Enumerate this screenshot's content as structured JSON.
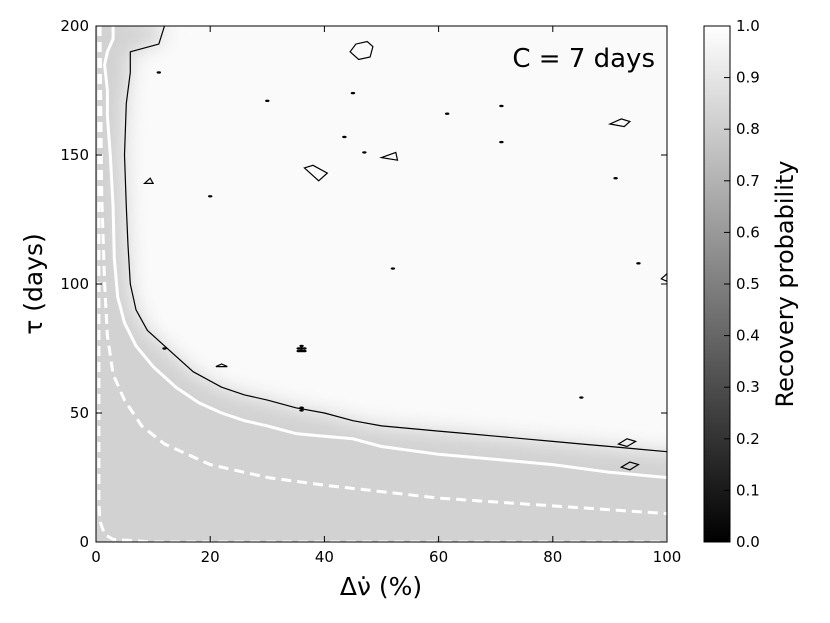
{
  "chart_data": {
    "type": "heatmap",
    "annotation": "C = 7 days",
    "xlabel": "Δν̇ (%)",
    "ylabel": "τ (days)",
    "colorbar_label": "Recovery probability",
    "x_range": [
      0,
      100
    ],
    "y_range": [
      0,
      200
    ],
    "x_ticks": [
      0,
      20,
      40,
      60,
      80,
      100
    ],
    "y_ticks": [
      0,
      50,
      100,
      150,
      200
    ],
    "colorbar_range": [
      0.0,
      1.0
    ],
    "colorbar_ticks": [
      "0.0",
      "0.1",
      "0.2",
      "0.3",
      "0.4",
      "0.5",
      "0.6",
      "0.7",
      "0.8",
      "0.9",
      "1.0"
    ],
    "colormap": "gray",
    "colors": {
      "low": "#000000",
      "high": "#ffffff"
    },
    "contours": [
      {
        "style": "dashed-white",
        "points": [
          [
            0.5,
            200
          ],
          [
            0.5,
            150
          ],
          [
            0.5,
            100
          ],
          [
            0.5,
            50
          ],
          [
            0.5,
            15
          ],
          [
            0.7,
            8
          ],
          [
            1.5,
            3
          ],
          [
            3,
            1
          ],
          [
            10,
            0
          ],
          [
            100,
            0
          ]
        ]
      },
      {
        "style": "dashed-white",
        "points": [
          [
            0.7,
            200
          ],
          [
            0.8,
            175
          ],
          [
            1,
            135
          ],
          [
            1.5,
            100
          ],
          [
            2,
            80
          ],
          [
            3,
            65
          ],
          [
            5,
            55
          ],
          [
            8,
            45
          ],
          [
            12,
            38
          ],
          [
            20,
            30
          ],
          [
            30,
            25
          ],
          [
            40,
            22
          ],
          [
            60,
            17
          ],
          [
            80,
            14
          ],
          [
            100,
            11
          ]
        ]
      },
      {
        "style": "solid-white",
        "points": [
          [
            3,
            200
          ],
          [
            3,
            195
          ],
          [
            2,
            190
          ],
          [
            1.5,
            185
          ],
          [
            2,
            175
          ],
          [
            2,
            165
          ],
          [
            2.5,
            150
          ],
          [
            3,
            130
          ],
          [
            3.2,
            110
          ],
          [
            3.8,
            95
          ],
          [
            5,
            85
          ],
          [
            7,
            76
          ],
          [
            10,
            68
          ],
          [
            14,
            60
          ],
          [
            18,
            54
          ],
          [
            22,
            50
          ],
          [
            26,
            47
          ],
          [
            30,
            45
          ],
          [
            35,
            42
          ],
          [
            40,
            41
          ],
          [
            45,
            40
          ],
          [
            50,
            37
          ],
          [
            60,
            34
          ],
          [
            70,
            32
          ],
          [
            80,
            30
          ],
          [
            90,
            27
          ],
          [
            100,
            25
          ]
        ]
      },
      {
        "style": "solid-black",
        "points": [
          [
            12,
            200
          ],
          [
            11,
            193
          ],
          [
            6,
            190
          ],
          [
            6,
            182
          ],
          [
            5.3,
            170
          ],
          [
            5,
            150
          ],
          [
            5.3,
            130
          ],
          [
            5.6,
            115
          ],
          [
            6,
            100
          ],
          [
            7,
            90
          ],
          [
            9,
            82
          ],
          [
            10,
            80
          ],
          [
            13,
            74
          ],
          [
            17,
            66
          ],
          [
            22,
            60
          ],
          [
            26,
            57
          ],
          [
            30,
            55
          ],
          [
            35,
            52
          ],
          [
            40,
            50
          ],
          [
            45,
            47
          ],
          [
            50,
            45
          ],
          [
            55,
            44
          ],
          [
            60,
            43
          ],
          [
            65,
            42
          ],
          [
            70,
            41
          ],
          [
            75,
            40
          ],
          [
            80,
            39
          ],
          [
            85,
            38
          ],
          [
            90,
            37
          ],
          [
            95,
            36
          ],
          [
            100,
            35
          ]
        ]
      }
    ],
    "islands": [
      [
        [
          44.5,
          190
        ],
        [
          45.5,
          193
        ],
        [
          47.5,
          194
        ],
        [
          48.5,
          192
        ],
        [
          48,
          188
        ],
        [
          46,
          187
        ],
        [
          44.5,
          190
        ]
      ],
      [
        [
          90,
          162
        ],
        [
          92,
          164
        ],
        [
          93.5,
          163
        ],
        [
          92.5,
          161
        ],
        [
          90,
          162
        ]
      ],
      [
        [
          36.5,
          145
        ],
        [
          38,
          146
        ],
        [
          40.5,
          143
        ],
        [
          39,
          140
        ],
        [
          36.5,
          145
        ]
      ],
      [
        [
          50,
          149
        ],
        [
          52.5,
          151
        ],
        [
          52.8,
          148
        ],
        [
          50,
          149
        ]
      ],
      [
        [
          8.5,
          139
        ],
        [
          9.5,
          141
        ],
        [
          10,
          139
        ],
        [
          8.5,
          139
        ]
      ],
      [
        [
          21,
          68
        ],
        [
          22,
          69
        ],
        [
          23,
          68
        ],
        [
          21,
          68
        ]
      ],
      [
        [
          99,
          102
        ],
        [
          100,
          104
        ],
        [
          100,
          101
        ],
        [
          99,
          102
        ]
      ],
      [
        [
          91.5,
          38
        ],
        [
          93,
          40
        ],
        [
          94.5,
          39
        ],
        [
          93,
          37
        ],
        [
          91.5,
          38
        ]
      ],
      [
        [
          92,
          29
        ],
        [
          93.5,
          31
        ],
        [
          95,
          30
        ],
        [
          93.5,
          28
        ],
        [
          92,
          29
        ]
      ]
    ],
    "dots": [
      [
        11,
        182
      ],
      [
        30,
        171
      ],
      [
        45,
        174
      ],
      [
        47,
        151
      ],
      [
        43.5,
        157
      ],
      [
        20,
        134
      ],
      [
        52,
        106
      ],
      [
        61.5,
        166
      ],
      [
        71,
        169
      ],
      [
        71,
        155
      ],
      [
        91,
        141
      ],
      [
        95,
        108
      ],
      [
        12,
        75
      ],
      [
        35.5,
        75
      ],
      [
        36,
        74
      ],
      [
        36.5,
        75
      ],
      [
        36,
        76
      ],
      [
        35.5,
        74
      ],
      [
        36,
        75
      ],
      [
        36.5,
        74
      ],
      [
        36,
        75
      ],
      [
        36,
        75
      ],
      [
        35.8,
        75
      ],
      [
        85,
        56
      ],
      [
        36,
        52
      ],
      [
        36,
        51
      ],
      [
        36,
        52
      ]
    ]
  }
}
